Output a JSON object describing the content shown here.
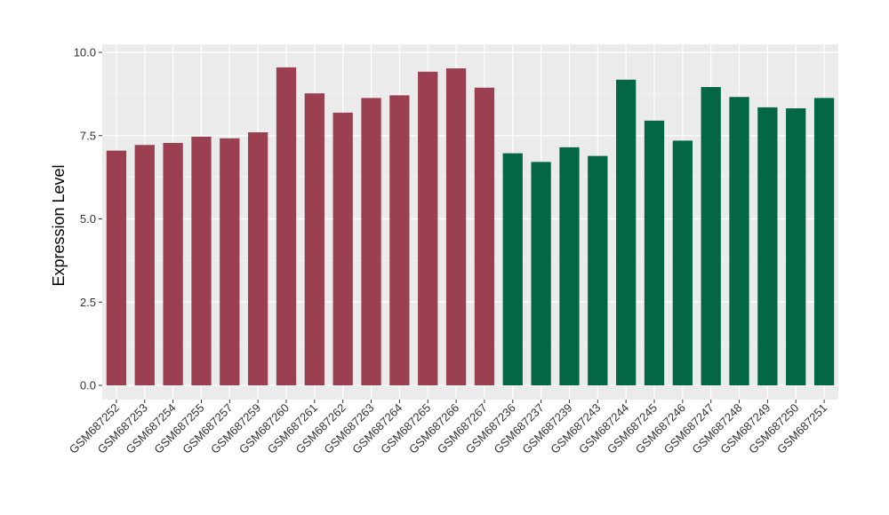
{
  "chart_data": {
    "type": "bar",
    "title": "",
    "xlabel": "",
    "ylabel": "Expression Level",
    "ylim": [
      -0.5,
      10.0
    ],
    "yticks": [
      0.0,
      2.5,
      5.0,
      7.5,
      10.0
    ],
    "ytick_labels": [
      "0.0",
      "2.5",
      "5.0",
      "7.5",
      "10.0"
    ],
    "grid": true,
    "legend": "none",
    "background_color": "#ebebeb",
    "categories": [
      "GSM687252",
      "GSM687253",
      "GSM687254",
      "GSM687255",
      "GSM687257",
      "GSM687259",
      "GSM687260",
      "GSM687261",
      "GSM687262",
      "GSM687263",
      "GSM687264",
      "GSM687265",
      "GSM687266",
      "GSM687267",
      "GSM687236",
      "GSM687237",
      "GSM687239",
      "GSM687243",
      "GSM687244",
      "GSM687245",
      "GSM687246",
      "GSM687247",
      "GSM687248",
      "GSM687249",
      "GSM687250",
      "GSM687251"
    ],
    "values": [
      7.05,
      7.22,
      7.28,
      7.47,
      7.42,
      7.6,
      9.55,
      8.77,
      8.19,
      8.63,
      8.71,
      9.42,
      9.52,
      8.94,
      6.97,
      6.71,
      7.15,
      6.89,
      9.18,
      7.95,
      7.35,
      8.96,
      8.66,
      8.35,
      8.32,
      8.63
    ],
    "bar_colors": [
      "#9a4050",
      "#9a4050",
      "#9a4050",
      "#9a4050",
      "#9a4050",
      "#9a4050",
      "#9a4050",
      "#9a4050",
      "#9a4050",
      "#9a4050",
      "#9a4050",
      "#9a4050",
      "#9a4050",
      "#9a4050",
      "#036746",
      "#036746",
      "#036746",
      "#036746",
      "#036746",
      "#036746",
      "#036746",
      "#036746",
      "#036746",
      "#036746",
      "#036746",
      "#036746"
    ]
  }
}
